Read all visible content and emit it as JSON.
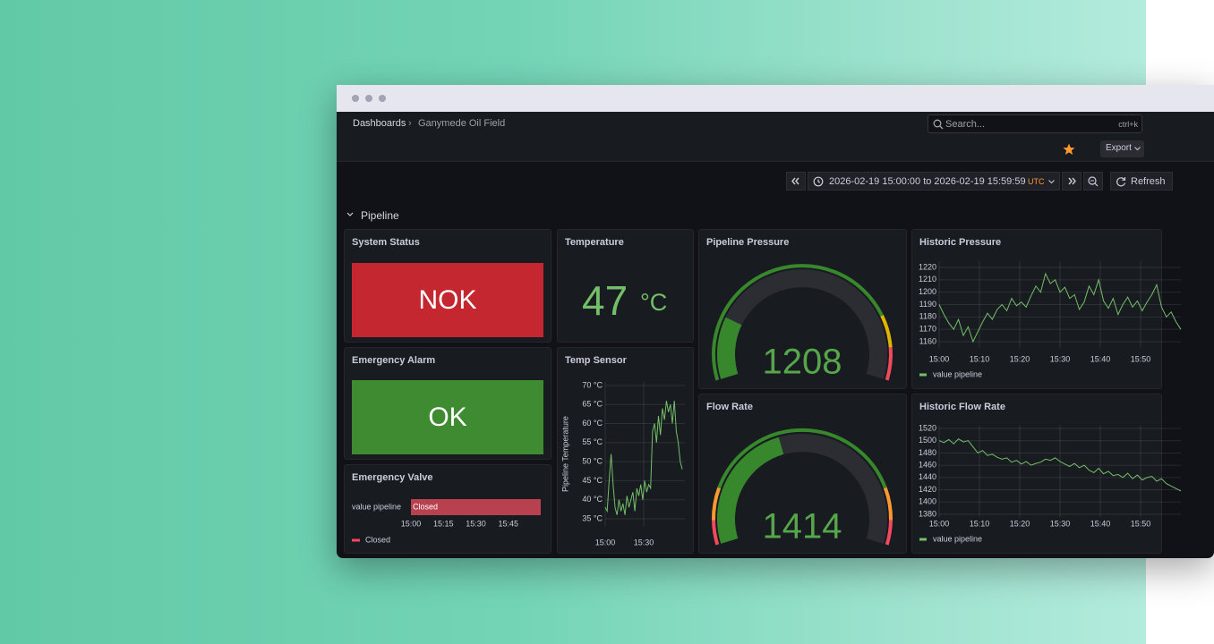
{
  "nav": {
    "breadcrumb": [
      "Dashboards",
      "Ganymede Oil Field"
    ],
    "search_placeholder": "Search...",
    "search_shortcut": "ctrl+k",
    "export": "Export"
  },
  "time_picker": {
    "range": "2026-02-19 15:00:00 to 2026-02-19 15:59:59",
    "timezone": "UTC",
    "refresh": "Refresh"
  },
  "row_title": "Pipeline",
  "panels": {
    "system_status": {
      "title": "System Status",
      "value": "NOK",
      "color": "#c4272f"
    },
    "temperature": {
      "title": "Temperature",
      "value": 47,
      "unit": "°C",
      "color": "#73bf69"
    },
    "emergency_alarm": {
      "title": "Emergency Alarm",
      "value": "OK",
      "color": "#3f8b31"
    },
    "emergency_valve": {
      "title": "Emergency Valve",
      "type": "state-timeline",
      "series": [
        {
          "name": "value pipeline",
          "state": "Closed",
          "color": "#b8414f"
        }
      ],
      "xlim": [
        "15:00",
        "16:00"
      ],
      "xticks": [
        "15:00",
        "15:15",
        "15:30",
        "15:45"
      ]
    },
    "temp_sensor": {
      "title": "Temp Sensor",
      "type": "line",
      "ylabel": "Pipeline Temperature",
      "xlim": [
        "15:00",
        "16:00"
      ],
      "xticks": [
        "15:00",
        "15:30"
      ],
      "ylim": [
        33,
        71
      ],
      "yticks": [
        {
          "value": 35,
          "label": "35 °C"
        },
        {
          "value": 40,
          "label": "40 °C"
        },
        {
          "value": 45,
          "label": "45 °C"
        },
        {
          "value": 50,
          "label": "50 °C"
        },
        {
          "value": 55,
          "label": "55 °C"
        },
        {
          "value": 60,
          "label": "60 °C"
        },
        {
          "value": 65,
          "label": "65 °C"
        },
        {
          "value": 70,
          "label": "70 °C"
        }
      ],
      "grid": true,
      "series": [
        {
          "name": "value pipeline",
          "color": "#73bf69",
          "values": [
            38,
            37,
            45,
            52,
            44,
            38,
            36,
            40,
            37,
            39,
            36,
            41,
            38,
            40,
            42,
            37,
            43,
            41,
            44,
            40,
            45,
            42,
            44,
            43,
            58,
            60,
            55,
            62,
            57,
            64,
            61,
            66,
            63,
            65,
            60,
            66,
            58,
            55,
            50,
            48
          ]
        }
      ],
      "legend": false
    },
    "pipeline_pressure": {
      "title": "Pipeline Pressure",
      "type": "gauge",
      "value": 1208,
      "min": 1200,
      "max": 1240,
      "thresholds": [
        {
          "value": 1200,
          "color": "#37872d"
        },
        {
          "value": 1232,
          "color": "#e0b400"
        },
        {
          "value": 1236,
          "color": "#f2495c"
        }
      ]
    },
    "flow_rate": {
      "title": "Flow Rate",
      "type": "gauge",
      "value": 1414,
      "min": 1380,
      "max": 1460,
      "thresholds": [
        {
          "value": 1380,
          "color": "#f2495c"
        },
        {
          "value": 1386,
          "color": "#ff9830"
        },
        {
          "value": 1394,
          "color": "#37872d"
        },
        {
          "value": 1446,
          "color": "#ff9830"
        },
        {
          "value": 1454,
          "color": "#f2495c"
        }
      ]
    },
    "historic_pressure": {
      "title": "Historic Pressure",
      "type": "line",
      "xlim": [
        "15:00",
        "16:00"
      ],
      "xticks": [
        "15:00",
        "15:10",
        "15:20",
        "15:30",
        "15:40",
        "15:50"
      ],
      "ylim": [
        1155,
        1225
      ],
      "yticks": [
        1160,
        1170,
        1180,
        1190,
        1200,
        1210,
        1220
      ],
      "grid": true,
      "series": [
        {
          "name": "value pipeline",
          "color": "#73bf69",
          "values": [
            1190,
            1182,
            1175,
            1170,
            1178,
            1165,
            1172,
            1160,
            1168,
            1176,
            1183,
            1178,
            1186,
            1190,
            1185,
            1195,
            1189,
            1192,
            1188,
            1197,
            1205,
            1200,
            1215,
            1207,
            1210,
            1200,
            1204,
            1195,
            1198,
            1186,
            1192,
            1205,
            1198,
            1210,
            1193,
            1187,
            1195,
            1182,
            1190,
            1196,
            1188,
            1193,
            1185,
            1192,
            1198,
            1206,
            1188,
            1180,
            1184,
            1176,
            1170
          ]
        }
      ],
      "legend": true
    },
    "historic_flow_rate": {
      "title": "Historic Flow Rate",
      "type": "line",
      "xlim": [
        "15:00",
        "16:00"
      ],
      "xticks": [
        "15:00",
        "15:10",
        "15:20",
        "15:30",
        "15:40",
        "15:50"
      ],
      "ylim": [
        1375,
        1525
      ],
      "yticks": [
        1380,
        1400,
        1420,
        1440,
        1460,
        1480,
        1500,
        1520
      ],
      "grid": true,
      "series": [
        {
          "name": "value pipeline",
          "color": "#73bf69",
          "values": [
            1500,
            1497,
            1502,
            1495,
            1503,
            1498,
            1500,
            1490,
            1480,
            1484,
            1476,
            1478,
            1473,
            1470,
            1472,
            1465,
            1468,
            1462,
            1466,
            1460,
            1463,
            1465,
            1470,
            1468,
            1472,
            1466,
            1462,
            1458,
            1463,
            1456,
            1460,
            1452,
            1448,
            1455,
            1446,
            1450,
            1443,
            1445,
            1440,
            1447,
            1438,
            1444,
            1436,
            1440,
            1442,
            1434,
            1438,
            1430,
            1426,
            1422,
            1418
          ]
        }
      ],
      "legend": true
    }
  }
}
